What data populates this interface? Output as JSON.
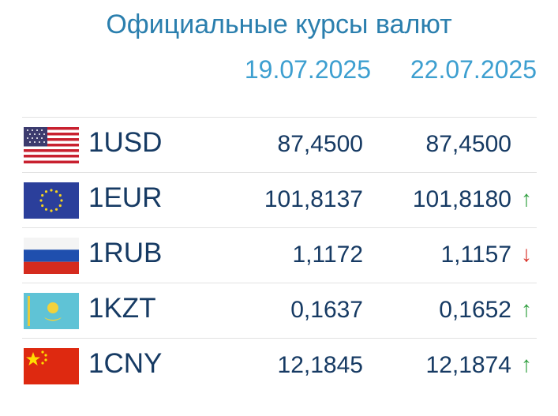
{
  "header": {
    "title": "Официальные курсы валют",
    "dates": [
      "19.07.2025",
      "22.07.2025"
    ]
  },
  "table": {
    "rows": [
      {
        "currency": "1USD",
        "rate_1": "87,4500",
        "rate_2": "87,4500"
      },
      {
        "currency": "1EUR",
        "rate_1": "101,8137",
        "rate_2": "101,8180",
        "trend": "↑",
        "trend_color": "#2e9e3e"
      },
      {
        "currency": "1RUB",
        "rate_1": "1,1172",
        "rate_2": "1,1157",
        "trend": "↓",
        "trend_color": "#d9342b"
      },
      {
        "currency": "1KZT",
        "rate_1": "0,1637",
        "rate_2": "0,1652",
        "trend": "↑",
        "trend_color": "#2e9e3e"
      },
      {
        "currency": "1CNY",
        "rate_1": "12,1845",
        "rate_2": "12,1874",
        "trend": "↑",
        "trend_color": "#2e9e3e"
      }
    ]
  }
}
